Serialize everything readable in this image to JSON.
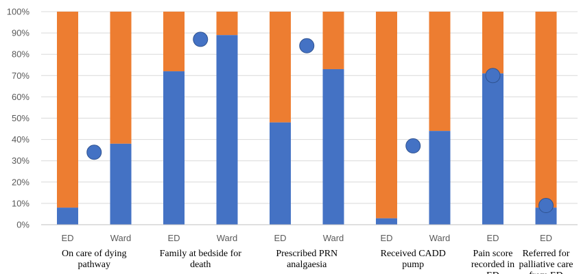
{
  "chart_data": {
    "type": "bar",
    "stacked": true,
    "percent": true,
    "ylim": [
      0,
      100
    ],
    "yticks": [
      "0%",
      "10%",
      "20%",
      "30%",
      "40%",
      "50%",
      "60%",
      "70%",
      "80%",
      "90%",
      "100%"
    ],
    "grid": true,
    "colors": {
      "lower": "#4472C4",
      "upper": "#ED7D31",
      "marker": "#4472C4",
      "grid": "#d9d9d9",
      "axis": "#bfbfbf"
    },
    "groups": [
      {
        "label": "On care of dying pathway",
        "label_lines": [
          "On care of dying",
          "pathway"
        ],
        "bars": [
          {
            "category": "ED",
            "value": 8
          },
          {
            "category": "Ward",
            "value": 38
          }
        ],
        "marker": 34
      },
      {
        "label": "Family at bedside for death",
        "label_lines": [
          "Family at bedside for",
          "death"
        ],
        "bars": [
          {
            "category": "ED",
            "value": 72
          },
          {
            "category": "Ward",
            "value": 89
          }
        ],
        "marker": 87
      },
      {
        "label": "Prescribed PRN analgaesia",
        "label_lines": [
          "Prescribed PRN",
          "analgaesia"
        ],
        "bars": [
          {
            "category": "ED",
            "value": 48
          },
          {
            "category": "Ward",
            "value": 73
          }
        ],
        "marker": 84
      },
      {
        "label": "Received CADD pump",
        "label_lines": [
          "Received CADD",
          "pump"
        ],
        "bars": [
          {
            "category": "ED",
            "value": 3
          },
          {
            "category": "Ward",
            "value": 44
          }
        ],
        "marker": 37
      },
      {
        "label": "Pain score recorded in ED",
        "label_lines": [
          "Pain score",
          "recorded in",
          "ED"
        ],
        "bars": [
          {
            "category": "ED",
            "value": 71
          }
        ],
        "marker": 70
      },
      {
        "label": "Referred for palliative care from ED",
        "label_lines": [
          "Referred for",
          "palliative care",
          "from ED"
        ],
        "bars": [
          {
            "category": "ED",
            "value": 8
          }
        ],
        "marker": 9
      }
    ]
  }
}
